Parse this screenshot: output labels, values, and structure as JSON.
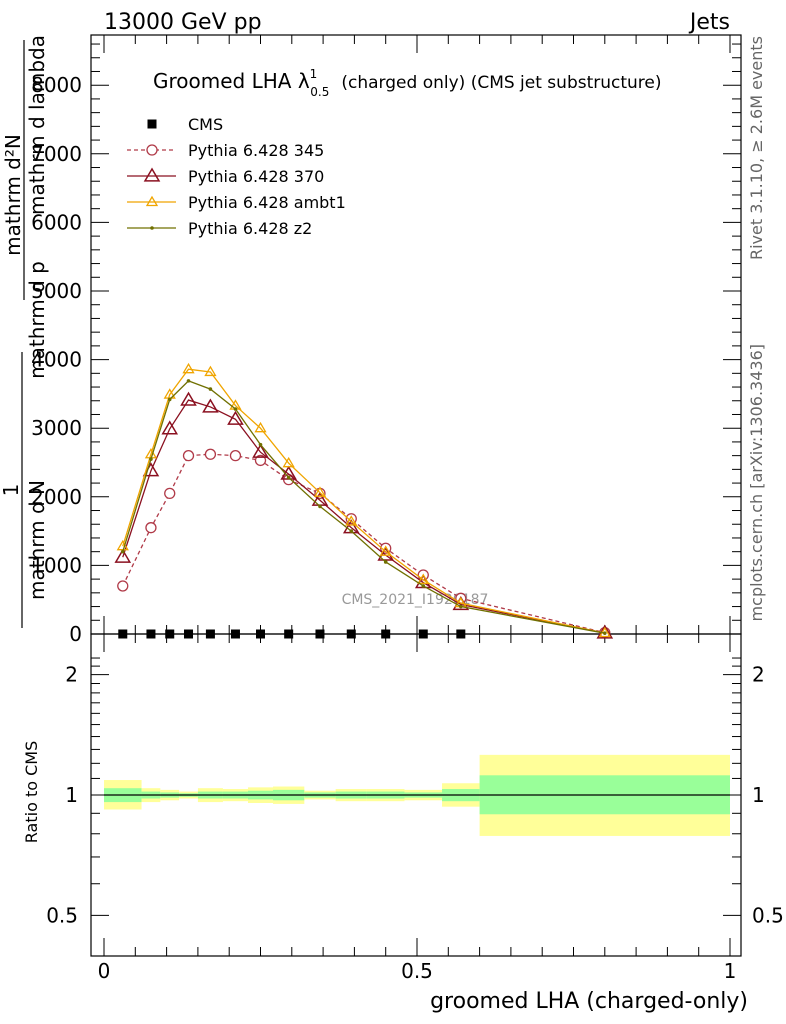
{
  "header": {
    "left": "13000 GeV pp",
    "right": "Jets"
  },
  "side_text": {
    "rivet": "Rivet 3.1.10, ≥ 2.6M events",
    "mcplots": "mcplots.cern.ch [arXiv:1306.3436]"
  },
  "watermark": "CMS_2021_I1920187",
  "colors": {
    "cms": "#000000",
    "p345": "#b03a48",
    "p370": "#8b1020",
    "ambt1": "#f0a500",
    "z2": "#707000",
    "band_inner": "#99ff99",
    "band_outer": "#ffff99"
  },
  "chart_data": [
    {
      "type": "line",
      "title_main": "Groomed LHA λ",
      "title_sup": "1",
      "title_sub": "0.5",
      "title_rest": "(charged only) (CMS jet substructure)",
      "ylabel_numer_1": "1",
      "ylabel_denom_1": "mathrm d N",
      "ylabel_numer_2": "mathrm d²N",
      "ylabel_denom_2": "mathrm d p",
      "ylabel_denom_3": "mathrm d lambda",
      "ylim": [
        0,
        8800
      ],
      "xlim": [
        -0.02,
        1.02
      ],
      "yticks": [
        0,
        1000,
        2000,
        3000,
        4000,
        5000,
        6000,
        7000,
        8000
      ],
      "ytick_labels": [
        "0",
        "1000",
        "2000",
        "3000",
        "4000",
        "5000",
        "6000",
        "7000",
        "8000"
      ],
      "legend_position": "top-left",
      "series": [
        {
          "name": "CMS",
          "style": "square",
          "x": [
            0.03,
            0.075,
            0.105,
            0.135,
            0.17,
            0.21,
            0.25,
            0.295,
            0.345,
            0.395,
            0.45,
            0.51,
            0.57
          ],
          "y": [
            0,
            0,
            0,
            0,
            0,
            0,
            0,
            0,
            0,
            0,
            0,
            0,
            0
          ]
        },
        {
          "name": "Pythia 6.428 345",
          "style": "open-circle-dashed",
          "x": [
            0.03,
            0.075,
            0.105,
            0.135,
            0.17,
            0.21,
            0.25,
            0.295,
            0.345,
            0.395,
            0.45,
            0.51,
            0.57,
            0.8
          ],
          "y": [
            700,
            1550,
            2050,
            2600,
            2620,
            2600,
            2530,
            2250,
            2050,
            1680,
            1250,
            860,
            520,
            20
          ]
        },
        {
          "name": "Pythia 6.428 370",
          "style": "open-triangle",
          "x": [
            0.03,
            0.075,
            0.105,
            0.135,
            0.17,
            0.21,
            0.25,
            0.295,
            0.345,
            0.395,
            0.45,
            0.51,
            0.57,
            0.8
          ],
          "y": [
            1120,
            2380,
            2990,
            3410,
            3310,
            3130,
            2650,
            2330,
            1950,
            1550,
            1150,
            750,
            430,
            15
          ]
        },
        {
          "name": "Pythia 6.428 ambt1",
          "style": "open-triangle-small",
          "x": [
            0.03,
            0.075,
            0.105,
            0.135,
            0.17,
            0.21,
            0.25,
            0.295,
            0.345,
            0.395,
            0.45,
            0.51,
            0.57,
            0.8
          ],
          "y": [
            1280,
            2620,
            3490,
            3860,
            3820,
            3330,
            3000,
            2490,
            2060,
            1640,
            1200,
            790,
            450,
            15
          ]
        },
        {
          "name": "Pythia 6.428 z2",
          "style": "dot",
          "x": [
            0.03,
            0.075,
            0.105,
            0.135,
            0.17,
            0.21,
            0.25,
            0.295,
            0.345,
            0.395,
            0.45,
            0.51,
            0.57,
            0.8
          ],
          "y": [
            1200,
            2550,
            3420,
            3690,
            3570,
            3280,
            2760,
            2280,
            1860,
            1500,
            1050,
            700,
            400,
            12
          ]
        }
      ]
    },
    {
      "type": "area",
      "ylabel": "Ratio to CMS",
      "xlabel": "groomed LHA (charged-only)",
      "ylim": [
        0.4,
        2.3
      ],
      "log_y": true,
      "xticks": [
        0,
        0.5,
        1
      ],
      "xtick_labels": [
        "0",
        "0.5",
        "1"
      ],
      "yticks": [
        0.5,
        1,
        2
      ],
      "ytick_labels": [
        "0.5",
        "1",
        "2"
      ],
      "bins": [
        {
          "x0": 0.0,
          "x1": 0.06,
          "inner": [
            0.96,
            1.04
          ],
          "outer": [
            0.92,
            1.09
          ]
        },
        {
          "x0": 0.06,
          "x1": 0.09,
          "inner": [
            0.98,
            1.02
          ],
          "outer": [
            0.96,
            1.04
          ]
        },
        {
          "x0": 0.09,
          "x1": 0.12,
          "inner": [
            0.985,
            1.015
          ],
          "outer": [
            0.97,
            1.03
          ]
        },
        {
          "x0": 0.12,
          "x1": 0.15,
          "inner": [
            0.99,
            1.01
          ],
          "outer": [
            0.98,
            1.02
          ]
        },
        {
          "x0": 0.15,
          "x1": 0.19,
          "inner": [
            0.98,
            1.02
          ],
          "outer": [
            0.96,
            1.04
          ]
        },
        {
          "x0": 0.19,
          "x1": 0.23,
          "inner": [
            0.98,
            1.02
          ],
          "outer": [
            0.965,
            1.035
          ]
        },
        {
          "x0": 0.23,
          "x1": 0.27,
          "inner": [
            0.975,
            1.025
          ],
          "outer": [
            0.955,
            1.045
          ]
        },
        {
          "x0": 0.27,
          "x1": 0.32,
          "inner": [
            0.97,
            1.03
          ],
          "outer": [
            0.95,
            1.05
          ]
        },
        {
          "x0": 0.32,
          "x1": 0.37,
          "inner": [
            0.985,
            1.015
          ],
          "outer": [
            0.975,
            1.025
          ]
        },
        {
          "x0": 0.37,
          "x1": 0.42,
          "inner": [
            0.98,
            1.02
          ],
          "outer": [
            0.965,
            1.035
          ]
        },
        {
          "x0": 0.42,
          "x1": 0.48,
          "inner": [
            0.98,
            1.02
          ],
          "outer": [
            0.965,
            1.035
          ]
        },
        {
          "x0": 0.48,
          "x1": 0.54,
          "inner": [
            0.985,
            1.015
          ],
          "outer": [
            0.97,
            1.03
          ]
        },
        {
          "x0": 0.54,
          "x1": 0.6,
          "inner": [
            0.965,
            1.035
          ],
          "outer": [
            0.935,
            1.07
          ]
        },
        {
          "x0": 0.6,
          "x1": 1.0,
          "inner": [
            0.895,
            1.12
          ],
          "outer": [
            0.79,
            1.26
          ]
        }
      ]
    }
  ]
}
